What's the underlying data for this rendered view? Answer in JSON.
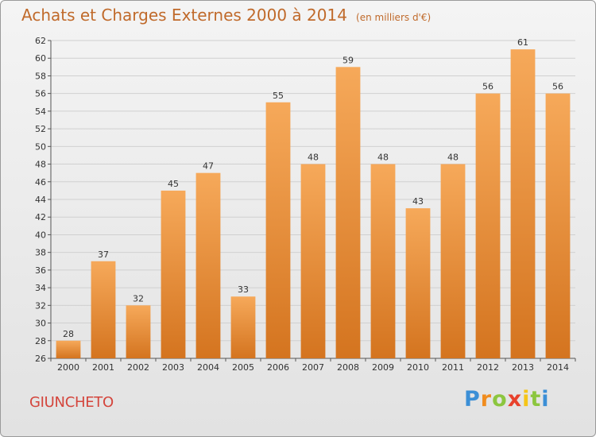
{
  "title": "Achats et Charges Externes 2000 à 2014",
  "subtitle": "(en milliers d'€)",
  "commune": "GIUNCHETO",
  "logo": {
    "letters": [
      "P",
      "r",
      "o",
      "x",
      "i",
      "t",
      "i"
    ],
    "colors": [
      "#3b8fd6",
      "#f08c1e",
      "#8cc63f",
      "#e8412c",
      "#f5c518",
      "#8cc63f",
      "#3b8fd6"
    ]
  },
  "colors": {
    "bar_light": "#f6a95a",
    "bar_dark": "#d4741f",
    "grid": "#d0d0d0"
  },
  "chart_data": {
    "type": "bar",
    "categories": [
      "2000",
      "2001",
      "2002",
      "2003",
      "2004",
      "2005",
      "2006",
      "2007",
      "2008",
      "2009",
      "2010",
      "2011",
      "2012",
      "2013",
      "2014"
    ],
    "values": [
      28,
      37,
      32,
      45,
      47,
      33,
      55,
      48,
      59,
      48,
      43,
      48,
      56,
      61,
      56
    ],
    "ylim": [
      26,
      62
    ],
    "yticks": [
      26,
      28,
      30,
      32,
      34,
      36,
      38,
      40,
      42,
      44,
      46,
      48,
      50,
      52,
      54,
      56,
      58,
      60,
      62
    ],
    "grid": true,
    "data_labels": true
  }
}
